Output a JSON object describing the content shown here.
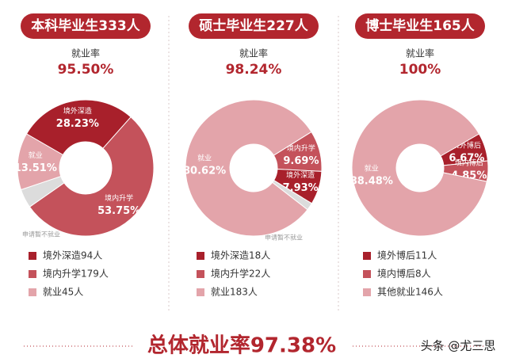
{
  "chart_data": [
    {
      "type": "donut",
      "title": "本科毕业生333人",
      "kpi_name": "就业率",
      "kpi": "95.50%",
      "categories": [
        "境外深造",
        "境内升学",
        "就业",
        "申请暂不就业"
      ],
      "values": [
        28.23,
        53.75,
        13.51,
        4.51
      ],
      "value_labels": [
        "28.23%",
        "53.75%",
        "13.51%",
        null
      ],
      "colors": [
        "#a8202b",
        "#c4525b",
        "#e3a4aa",
        "#dcdcdc"
      ],
      "legend": [
        "境外深造94人",
        "境内升学179人",
        "就业45人"
      ]
    },
    {
      "type": "donut",
      "title": "硕士毕业生227人",
      "kpi_name": "就业率",
      "kpi": "98.24%",
      "categories": [
        "境外深造",
        "境内升学",
        "就业",
        "申请暂不就业"
      ],
      "values": [
        7.93,
        9.69,
        80.62,
        1.76
      ],
      "value_labels": [
        "7.93%",
        "9.69%",
        "80.62%",
        null
      ],
      "colors": [
        "#a8202b",
        "#c4525b",
        "#e3a4aa",
        "#dcdcdc"
      ],
      "legend": [
        "境外深造18人",
        "境内升学22人",
        "就业183人"
      ]
    },
    {
      "type": "donut",
      "title": "博士毕业生165人",
      "kpi_name": "就业率",
      "kpi": "100%",
      "categories": [
        "境外博后",
        "境内博后",
        "就业"
      ],
      "values": [
        6.67,
        4.85,
        88.48
      ],
      "value_labels": [
        "6.67%",
        "4.85%",
        "88.48%"
      ],
      "colors": [
        "#a8202b",
        "#c4525b",
        "#e3a4aa"
      ],
      "legend": [
        "境外博后11人",
        "境内博后8人",
        "其他就业146人"
      ]
    }
  ],
  "footer": {
    "total": "总体就业率97.38%",
    "watermark": "头条 @尤三思"
  }
}
